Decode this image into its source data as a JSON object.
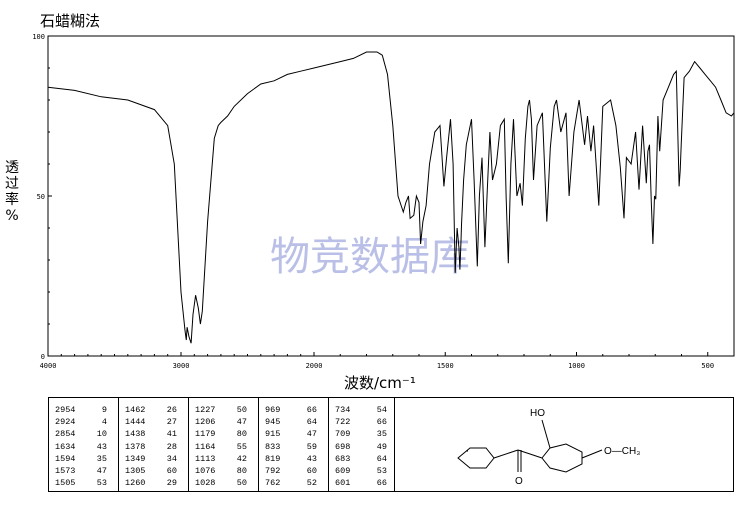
{
  "title": "石蜡糊法",
  "ylabel": "透过率%",
  "xlabel": "波数/cm⁻¹",
  "watermark": "物竞数据库",
  "x_ticks": [
    "4000",
    "3000",
    "2000",
    "1500",
    "1000",
    "500"
  ],
  "y_ticks": [
    "100",
    "50",
    "0"
  ],
  "peaks": [
    [
      [
        "2954",
        "9"
      ],
      [
        "2924",
        "4"
      ],
      [
        "2854",
        "10"
      ],
      [
        "1634",
        "43"
      ],
      [
        "1594",
        "35"
      ],
      [
        "1573",
        "47"
      ],
      [
        "1505",
        "53"
      ]
    ],
    [
      [
        "1462",
        "26"
      ],
      [
        "1444",
        "27"
      ],
      [
        "1438",
        "41"
      ],
      [
        "1378",
        "28"
      ],
      [
        "1349",
        "34"
      ],
      [
        "1305",
        "60"
      ],
      [
        "1260",
        "29"
      ]
    ],
    [
      [
        "1227",
        "50"
      ],
      [
        "1206",
        "47"
      ],
      [
        "1179",
        "80"
      ],
      [
        "1164",
        "55"
      ],
      [
        "1113",
        "42"
      ],
      [
        "1076",
        "80"
      ],
      [
        "1028",
        "50"
      ]
    ],
    [
      [
        "969",
        "66"
      ],
      [
        "945",
        "64"
      ],
      [
        "915",
        "47"
      ],
      [
        "833",
        "59"
      ],
      [
        "819",
        "43"
      ],
      [
        "792",
        "60"
      ],
      [
        "762",
        "52"
      ]
    ],
    [
      [
        "734",
        "54"
      ],
      [
        "722",
        "66"
      ],
      [
        "709",
        "35"
      ],
      [
        "698",
        "49"
      ],
      [
        "683",
        "64"
      ],
      [
        "609",
        "53"
      ],
      [
        "601",
        "66"
      ]
    ]
  ],
  "structure": {
    "oh_label": "HO",
    "o_label": "O",
    "ome_label": "O—CH₃"
  },
  "chart_data": {
    "type": "line",
    "title": "石蜡糊法",
    "xlabel": "波数/cm⁻¹",
    "ylabel": "透过率%",
    "xlim": [
      4000,
      400
    ],
    "ylim": [
      0,
      100
    ],
    "x_axis_note": "scale change at 2000 cm-1",
    "series": [
      {
        "x": [
          4000,
          3800,
          3600,
          3400,
          3200,
          3100,
          3050,
          3000,
          2970,
          2960,
          2954,
          2940,
          2924,
          2910,
          2890,
          2870,
          2854,
          2840,
          2800,
          2750,
          2720,
          2700,
          2650,
          2600,
          2500,
          2400,
          2300,
          2200,
          2100,
          2000,
          1900,
          1850,
          1800,
          1760,
          1740,
          1720,
          1700,
          1680,
          1660,
          1650,
          1640,
          1634,
          1620,
          1610,
          1600,
          1594,
          1585,
          1573,
          1560,
          1540,
          1520,
          1505,
          1495,
          1480,
          1470,
          1462,
          1455,
          1448,
          1444,
          1440,
          1438,
          1430,
          1420,
          1400,
          1390,
          1378,
          1370,
          1360,
          1349,
          1340,
          1330,
          1320,
          1305,
          1290,
          1275,
          1268,
          1260,
          1250,
          1240,
          1227,
          1215,
          1206,
          1195,
          1185,
          1179,
          1172,
          1164,
          1150,
          1130,
          1113,
          1100,
          1085,
          1076,
          1060,
          1040,
          1028,
          1010,
          990,
          969,
          958,
          945,
          935,
          915,
          900,
          870,
          850,
          833,
          825,
          819,
          810,
          792,
          775,
          762,
          748,
          734,
          728,
          722,
          715,
          709,
          703,
          698,
          690,
          683,
          670,
          650,
          630,
          620,
          609,
          605,
          601,
          590,
          570,
          550,
          530,
          510,
          490,
          470,
          450,
          430,
          410,
          400
        ],
        "y": [
          84,
          83,
          81,
          80,
          77,
          72,
          60,
          20,
          8,
          5,
          9,
          6,
          4,
          13,
          19,
          15,
          10,
          14,
          42,
          68,
          72,
          73,
          75,
          78,
          82,
          85,
          86,
          88,
          89,
          90,
          92,
          93,
          95,
          95,
          94,
          88,
          72,
          50,
          45,
          48,
          50,
          43,
          44,
          50,
          48,
          35,
          42,
          47,
          60,
          70,
          72,
          53,
          62,
          74,
          60,
          26,
          40,
          34,
          27,
          36,
          41,
          55,
          66,
          74,
          55,
          28,
          50,
          62,
          34,
          52,
          70,
          55,
          60,
          72,
          74,
          50,
          29,
          60,
          74,
          50,
          54,
          47,
          68,
          78,
          80,
          74,
          55,
          72,
          76,
          42,
          65,
          78,
          80,
          70,
          76,
          50,
          70,
          80,
          66,
          75,
          64,
          72,
          47,
          78,
          80,
          72,
          59,
          50,
          43,
          62,
          60,
          70,
          52,
          72,
          54,
          64,
          66,
          48,
          35,
          50,
          49,
          75,
          64,
          80,
          84,
          88,
          89,
          53,
          58,
          66,
          87,
          89,
          92,
          90,
          88,
          86,
          84,
          80,
          76,
          75,
          76
        ]
      }
    ]
  }
}
